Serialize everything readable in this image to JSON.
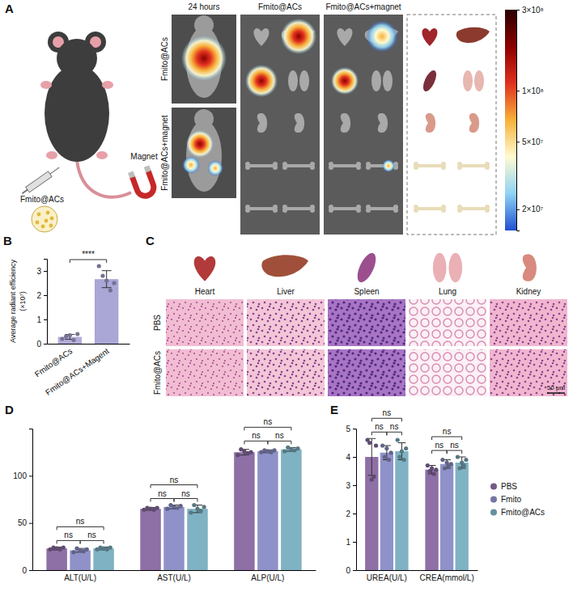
{
  "figure": {
    "panel_labels": [
      "A",
      "B",
      "C",
      "D",
      "E"
    ],
    "panel_a": {
      "cartoon_labels": [
        "Magnet",
        "Fmito@ACs"
      ],
      "column_titles": [
        "24 hours",
        "Fmito@ACs",
        "Fmito@ACs+magnet"
      ],
      "row_labels": [
        "Fmito@ACs",
        "Fmito@ACs+magnet"
      ]
    },
    "panel_c": {
      "organs": [
        "Heart",
        "Liver",
        "Spleen",
        "Lung",
        "Kidney"
      ],
      "row_labels": [
        "PBS",
        "Fmito@ACs"
      ],
      "scale_bar": "50 μm"
    }
  },
  "chart_data": [
    {
      "type": "colorbar",
      "log": "y",
      "ylim": [
        15000000,
        300000000
      ],
      "yticks": [
        {
          "value": 300000000,
          "label": "3×10⁸"
        },
        {
          "value": 100000000,
          "label": "1×10⁸"
        },
        {
          "value": 50000000,
          "label": "5×10⁷"
        },
        {
          "value": 20000000,
          "label": "2×10⁷"
        }
      ],
      "colors": [
        "#1f4fd1",
        "#8fd3f5",
        "#fffbd0",
        "#f7b13a",
        "#e0301e",
        "#8b0000",
        "#2a0000"
      ]
    },
    {
      "type": "bar",
      "y_label": "Average radiant efficiency (×10⁷)",
      "categories": [
        "Fmito@ACs",
        "Fmito@ACs+Magent"
      ],
      "values": [
        0.28,
        2.66
      ],
      "errors": [
        0.1,
        0.35
      ],
      "points": [
        [
          0.2,
          0.3,
          0.35,
          0.15,
          0.4
        ],
        [
          3.2,
          2.8,
          2.6,
          2.2,
          2.5
        ]
      ],
      "colors": [
        "#b4acd9",
        "#aaa6d6"
      ],
      "ylim": [
        0,
        3.5
      ],
      "yticks": [
        0,
        1,
        2,
        3
      ],
      "significance": [
        {
          "groups": [
            0,
            1
          ],
          "label": "****"
        }
      ]
    },
    {
      "type": "bar",
      "categories": [
        "ALT(U/L)",
        "AST(U/L)",
        "ALP(U/L)"
      ],
      "series": [
        {
          "color": "#8e6fa6",
          "values": [
            23,
            65,
            125
          ],
          "errors": [
            1.5,
            1.5,
            3
          ],
          "points": [
            [
              22,
              24,
              23,
              22,
              24
            ],
            [
              64,
              66,
              65,
              64,
              66
            ],
            [
              122,
              128,
              126,
              124,
              125
            ]
          ]
        },
        {
          "color": "#8f92c9",
          "values": [
            21,
            67,
            126
          ],
          "errors": [
            2,
            2,
            1.5
          ],
          "points": [
            [
              19,
              23,
              21,
              20,
              22
            ],
            [
              65,
              69,
              67,
              66,
              68
            ],
            [
              125,
              127,
              126,
              125,
              127
            ]
          ]
        },
        {
          "color": "#7fb2c2",
          "values": [
            23,
            65,
            128
          ],
          "errors": [
            1.5,
            4,
            2
          ],
          "points": [
            [
              22,
              24,
              23,
              22,
              24
            ],
            [
              61,
              69,
              65,
              63,
              67
            ],
            [
              126,
              130,
              128,
              127,
              129
            ]
          ]
        }
      ],
      "ylim": [
        0,
        150
      ],
      "yticks": [
        0,
        50,
        100
      ],
      "significance": [
        [
          {
            "groups": [
              0,
              1
            ],
            "label": "ns"
          },
          {
            "groups": [
              1,
              2
            ],
            "label": "ns"
          },
          {
            "groups": [
              0,
              2
            ],
            "label": "ns"
          }
        ],
        [
          {
            "groups": [
              0,
              1
            ],
            "label": "ns"
          },
          {
            "groups": [
              1,
              2
            ],
            "label": "ns"
          },
          {
            "groups": [
              0,
              2
            ],
            "label": "ns"
          }
        ],
        [
          {
            "groups": [
              0,
              1
            ],
            "label": "ns"
          },
          {
            "groups": [
              1,
              2
            ],
            "label": "ns"
          },
          {
            "groups": [
              0,
              2
            ],
            "label": "ns"
          }
        ]
      ]
    },
    {
      "type": "bar",
      "categories": [
        "UREA(U/L)",
        "CREA(mmol/L)"
      ],
      "series": [
        {
          "name": "PBS",
          "color": "#8e6fa6",
          "values": [
            4.0,
            3.55
          ],
          "errors": [
            0.65,
            0.15
          ],
          "points": [
            [
              4.6,
              4.5,
              3.2,
              3.3,
              4.4
            ],
            [
              3.7,
              3.5,
              3.6,
              3.4,
              3.55
            ]
          ]
        },
        {
          "name": "Fmito",
          "color": "#8f92c9",
          "values": [
            4.15,
            3.75
          ],
          "errors": [
            0.25,
            0.15
          ],
          "points": [
            [
              4.4,
              4.0,
              4.3,
              3.9,
              4.15
            ],
            [
              3.9,
              3.6,
              3.8,
              3.7,
              3.75
            ]
          ]
        },
        {
          "name": "Fmito@ACs",
          "color": "#7fb2c2",
          "values": [
            4.2,
            3.8
          ],
          "errors": [
            0.3,
            0.2
          ],
          "points": [
            [
              4.6,
              4.0,
              4.2,
              3.9,
              4.3
            ],
            [
              4.0,
              3.6,
              3.8,
              3.7,
              3.9
            ]
          ]
        }
      ],
      "ylim": [
        0,
        5
      ],
      "yticks": [
        0,
        1,
        2,
        3,
        4,
        5
      ],
      "legend": "right",
      "significance": [
        [
          {
            "groups": [
              0,
              1
            ],
            "label": "ns"
          },
          {
            "groups": [
              1,
              2
            ],
            "label": "ns"
          },
          {
            "groups": [
              0,
              2
            ],
            "label": "ns"
          }
        ],
        [
          {
            "groups": [
              0,
              1
            ],
            "label": "ns"
          },
          {
            "groups": [
              1,
              2
            ],
            "label": "ns"
          },
          {
            "groups": [
              0,
              2
            ],
            "label": "ns"
          }
        ]
      ]
    }
  ]
}
